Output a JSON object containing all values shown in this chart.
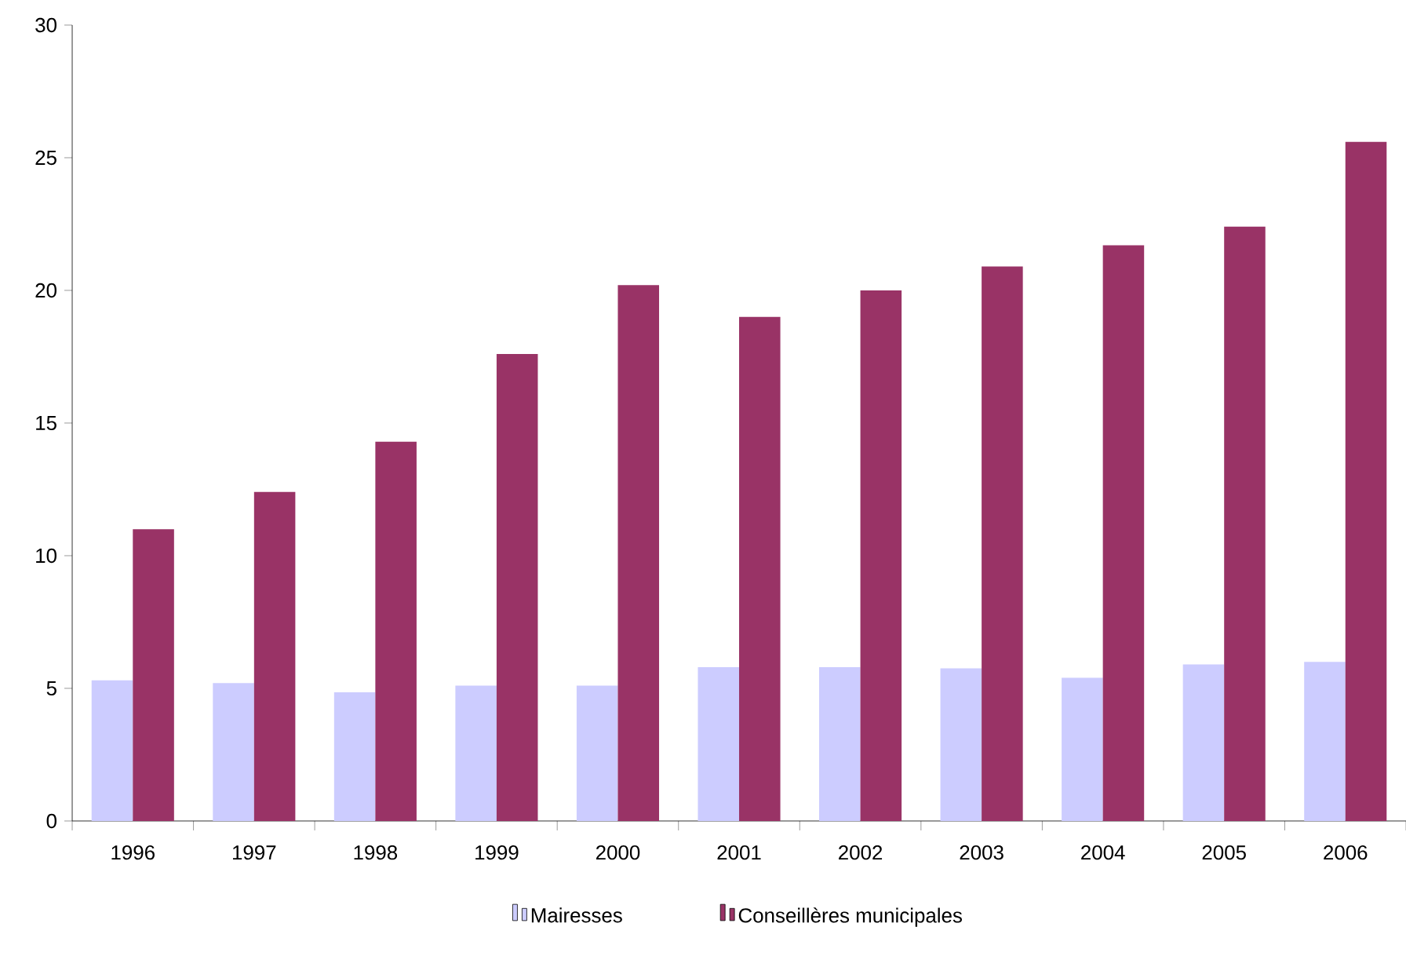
{
  "chart_data": {
    "type": "bar",
    "categories": [
      "1996",
      "1997",
      "1998",
      "1999",
      "2000",
      "2001",
      "2002",
      "2003",
      "2004",
      "2005",
      "2006"
    ],
    "series": [
      {
        "name": "Mairesses",
        "color": "#ccccff",
        "values": [
          5.3,
          5.2,
          4.85,
          5.1,
          5.1,
          5.8,
          5.8,
          5.75,
          5.4,
          5.9,
          6.0
        ]
      },
      {
        "name": "Conseillères municipales",
        "color": "#993366",
        "values": [
          11.0,
          12.4,
          14.3,
          17.6,
          20.2,
          19.0,
          20.0,
          20.9,
          21.7,
          22.4,
          25.6
        ]
      }
    ],
    "ylim": [
      0,
      30
    ],
    "yticks": [
      0,
      5,
      10,
      15,
      20,
      25,
      30
    ],
    "grid": false,
    "legend": "bottom"
  }
}
